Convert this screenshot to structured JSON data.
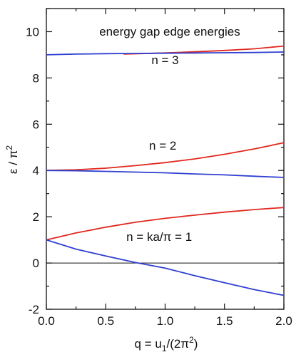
{
  "chart_data": {
    "type": "line",
    "title": "energy gap edge energies",
    "xlabel": "q = u1/(2π2)",
    "ylabel": "ε / π2",
    "xlim": [
      0.0,
      2.0
    ],
    "ylim": [
      -2,
      11
    ],
    "x_ticks": [
      "0.0",
      "0.5",
      "1.0",
      "1.5",
      "2.0"
    ],
    "x_tick_values": [
      0.0,
      0.5,
      1.0,
      1.5,
      2.0
    ],
    "y_ticks": [
      "-2",
      "0",
      "2",
      "4",
      "6",
      "8",
      "10"
    ],
    "y_tick_values": [
      -2,
      0,
      2,
      4,
      6,
      8,
      10
    ],
    "grid": false,
    "reference_line_y": 0,
    "annotations": [
      {
        "text": "n = 3",
        "x": 1.0,
        "y": 8.6
      },
      {
        "text": "n = 2",
        "x": 0.98,
        "y": 4.9
      },
      {
        "text": "n = ka/π = 1",
        "x": 0.95,
        "y": 0.95
      }
    ],
    "series": [
      {
        "color": "#e0281e",
        "x": [
          0.0,
          0.25,
          0.5,
          0.75,
          1.0,
          1.25,
          1.5,
          1.75,
          2.0
        ],
        "y": [
          1.0,
          1.3,
          1.55,
          1.76,
          1.93,
          2.07,
          2.2,
          2.31,
          2.4
        ]
      },
      {
        "color": "#2f3fd0",
        "x": [
          0.0,
          0.25,
          0.5,
          0.75,
          1.0,
          1.25,
          1.5,
          1.75,
          2.0
        ],
        "y": [
          1.0,
          0.6,
          0.3,
          0.02,
          -0.22,
          -0.55,
          -0.85,
          -1.15,
          -1.4
        ]
      },
      {
        "color": "#e0281e",
        "x": [
          0.0,
          0.25,
          0.5,
          0.75,
          1.0,
          1.25,
          1.5,
          1.75,
          2.0
        ],
        "y": [
          4.0,
          4.03,
          4.1,
          4.21,
          4.34,
          4.5,
          4.7,
          4.93,
          5.2
        ]
      },
      {
        "color": "#2f3fd0",
        "x": [
          0.0,
          0.25,
          0.5,
          0.75,
          1.0,
          1.25,
          1.5,
          1.75,
          2.0
        ],
        "y": [
          4.0,
          3.99,
          3.96,
          3.93,
          3.9,
          3.85,
          3.81,
          3.75,
          3.7
        ]
      },
      {
        "color": "#e0281e",
        "x": [
          0.65,
          1.0,
          1.25,
          1.5,
          1.75,
          2.0
        ],
        "y": [
          9.03,
          9.08,
          9.13,
          9.19,
          9.26,
          9.38
        ]
      },
      {
        "color": "#2f3fd0",
        "x": [
          0.0,
          0.25,
          0.5,
          0.75,
          1.0,
          1.25,
          1.5,
          1.75,
          2.0
        ],
        "y": [
          9.0,
          9.03,
          9.05,
          9.06,
          9.07,
          9.08,
          9.09,
          9.1,
          9.12
        ]
      }
    ]
  }
}
